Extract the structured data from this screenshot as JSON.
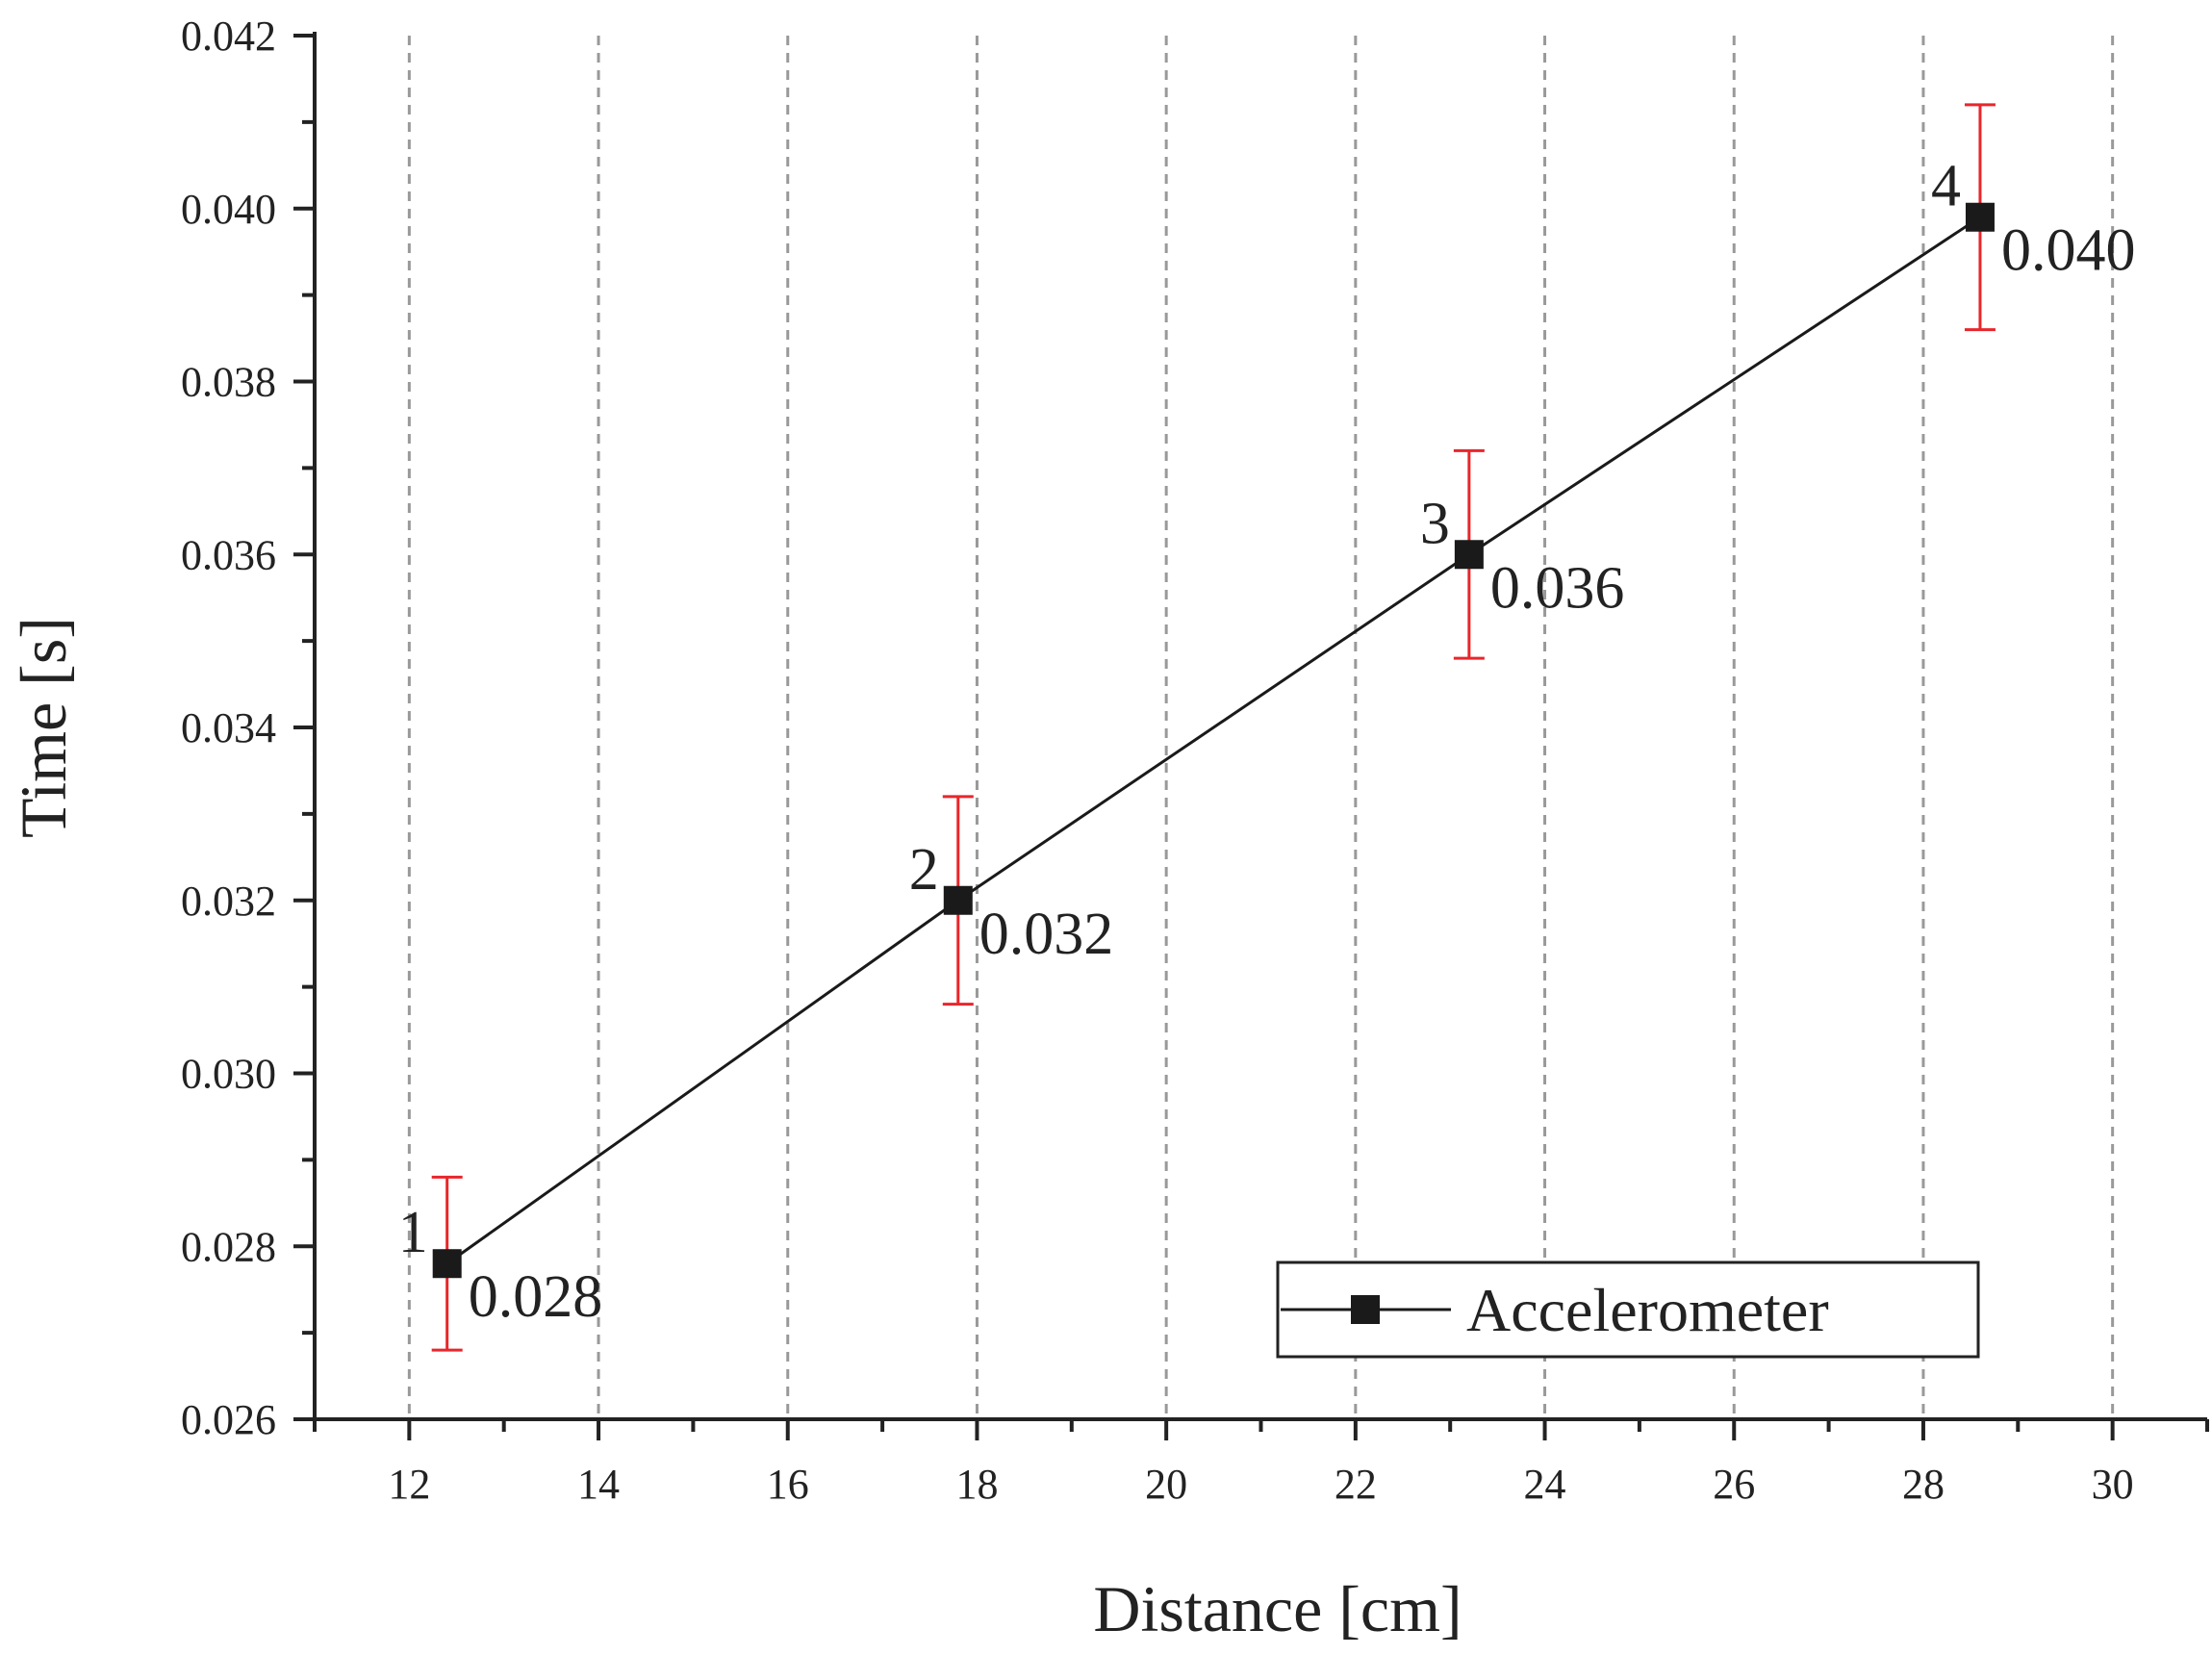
{
  "chart_data": {
    "type": "line",
    "x_label": "Distance [cm]",
    "y_label": "Time [s]",
    "series": [
      {
        "name": "Accelerometer",
        "color": "#1a1a1a",
        "x": [
          12.4,
          17.8,
          23.2,
          28.6
        ],
        "values": [
          0.0278,
          0.032,
          0.036,
          0.0399
        ],
        "value_labels": [
          "0.028",
          "0.032",
          "0.036",
          "0.040"
        ],
        "point_labels": [
          "1",
          "2",
          "3",
          "4"
        ],
        "errors": [
          0.001,
          0.0012,
          0.0012,
          0.0013
        ],
        "error_color": "#e8262b"
      }
    ],
    "xlim": [
      11,
      31
    ],
    "xticks": [
      12,
      14,
      16,
      18,
      20,
      22,
      24,
      26,
      28,
      30
    ],
    "xminorticks": [
      11,
      13,
      15,
      17,
      19,
      21,
      23,
      25,
      27,
      29,
      31
    ],
    "ylim": [
      0.026,
      0.042
    ],
    "yticks": [
      0.026,
      0.028,
      {
        "value": 0.03,
        "label": "0.030"
      },
      0.032,
      0.034,
      0.036,
      0.038,
      {
        "value": 0.04,
        "label": "0.040"
      },
      0.042
    ],
    "yminorticks": [
      0.027,
      0.029,
      0.031,
      0.033,
      0.035,
      0.037,
      0.039,
      0.041
    ],
    "grid": "x",
    "legend": "lower right"
  }
}
